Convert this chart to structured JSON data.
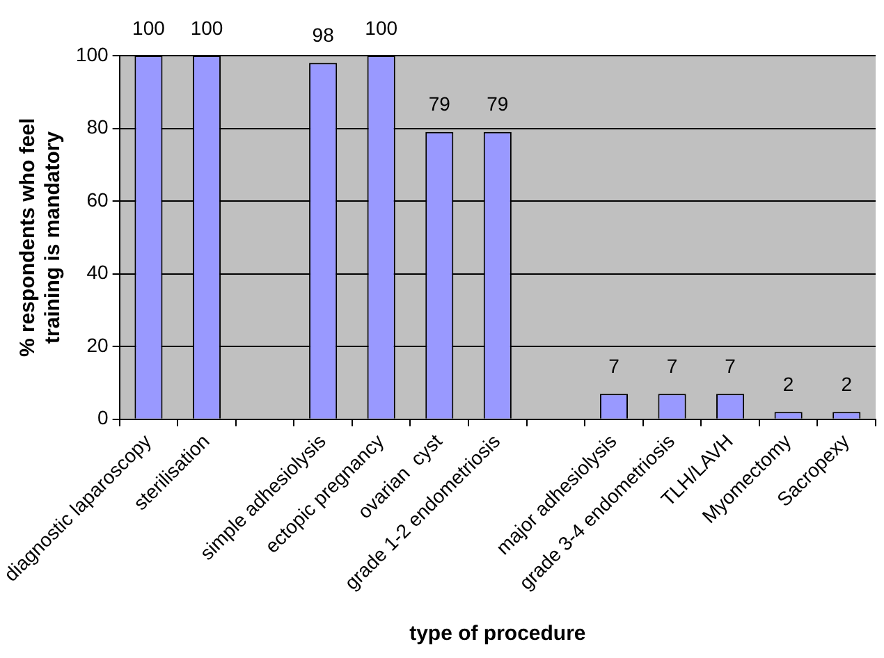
{
  "chart_data": {
    "type": "bar",
    "xlabel": "type of procedure",
    "ylabel": "% respondents who feel\ntraining is mandatory",
    "categories": [
      "diagnostic laparoscopy",
      "sterilisation",
      null,
      "simple adhesiolysis",
      "ectopic pregnancy",
      "ovarian  cyst",
      "grade 1-2 endometriosis",
      null,
      "major adhesiolysis",
      "grade 3-4 endometriosis",
      "TLH/LAVH",
      "Myomectomy",
      "Sacropexy"
    ],
    "values": [
      100,
      100,
      null,
      98,
      100,
      79,
      79,
      null,
      7,
      7,
      7,
      2,
      2
    ],
    "color": "#9999ff",
    "ylim": [
      0,
      100
    ],
    "yticks": [
      0,
      20,
      40,
      60,
      80,
      100
    ],
    "grid": "y",
    "legend": false,
    "data_labels": true
  }
}
